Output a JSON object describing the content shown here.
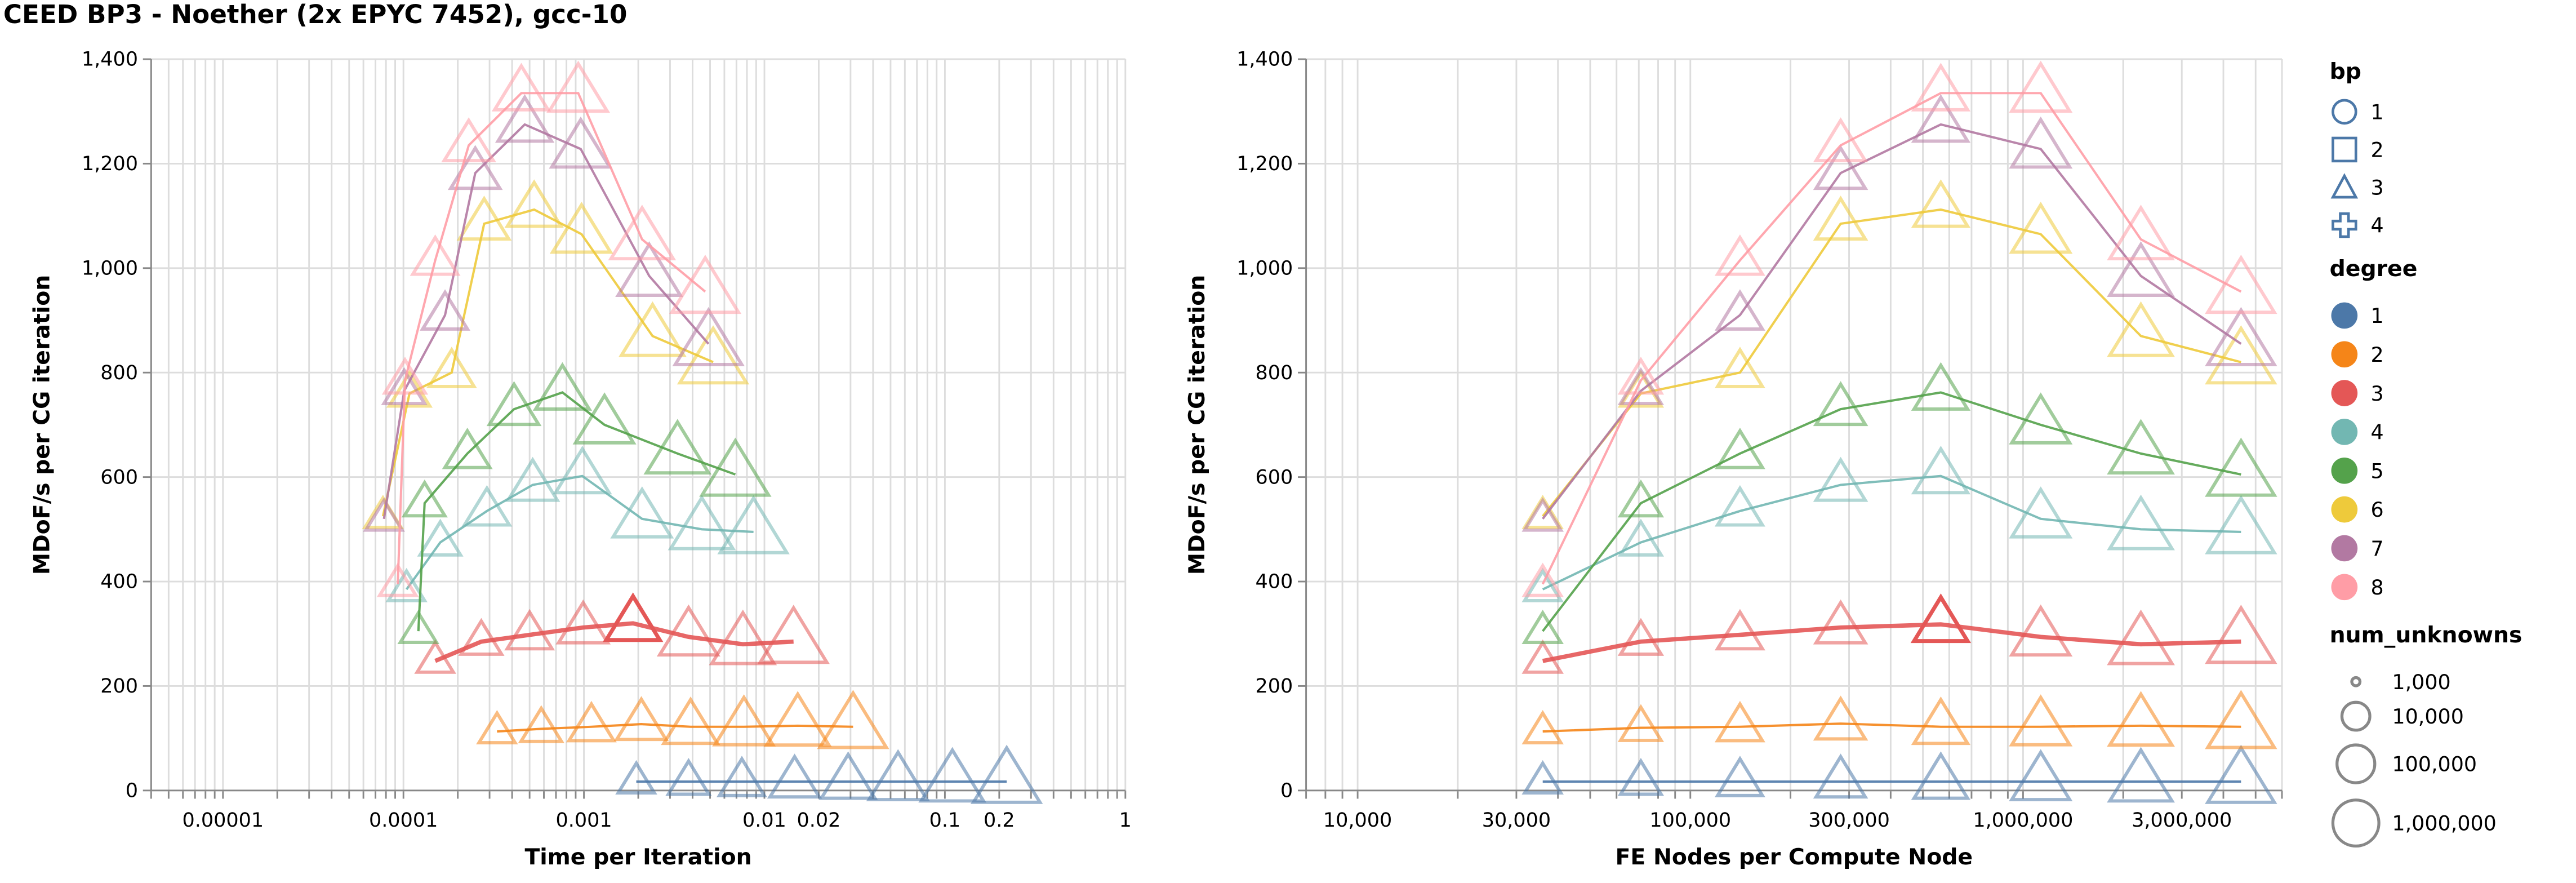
{
  "title": "CEED BP3 - Noether (2x EPYC 7452), gcc-10",
  "colors": {
    "deg1": "#4c78a8",
    "deg2": "#f58518",
    "deg3": "#e45756",
    "deg4": "#72b7b2",
    "deg5": "#54a24b",
    "deg6": "#eeca3b",
    "deg7": "#b279a2",
    "deg8": "#ff9da6",
    "grid": "#dddddd",
    "axis": "#888888"
  },
  "legend": {
    "bp": {
      "title": "bp",
      "items": [
        {
          "label": "1",
          "shape": "circle"
        },
        {
          "label": "2",
          "shape": "square"
        },
        {
          "label": "3",
          "shape": "triangle"
        },
        {
          "label": "4",
          "shape": "cross"
        }
      ]
    },
    "degree": {
      "title": "degree",
      "items": [
        {
          "label": "1",
          "color": "#4c78a8"
        },
        {
          "label": "2",
          "color": "#f58518"
        },
        {
          "label": "3",
          "color": "#e45756"
        },
        {
          "label": "4",
          "color": "#72b7b2"
        },
        {
          "label": "5",
          "color": "#54a24b"
        },
        {
          "label": "6",
          "color": "#eeca3b"
        },
        {
          "label": "7",
          "color": "#b279a2"
        },
        {
          "label": "8",
          "color": "#ff9da6"
        }
      ]
    },
    "num_unknowns": {
      "title": "num_unknowns",
      "items": [
        {
          "label": "1,000",
          "value": 1000
        },
        {
          "label": "10,000",
          "value": 10000
        },
        {
          "label": "100,000",
          "value": 100000
        },
        {
          "label": "1,000,000",
          "value": 1000000
        }
      ]
    }
  },
  "chart_data": [
    {
      "type": "scatter",
      "xlabel": "Time per Iteration",
      "ylabel": "MDoF/s per CG iteration",
      "xscale": "log",
      "xlim": [
        4e-06,
        1
      ],
      "ylim": [
        0,
        1400
      ],
      "grid": true,
      "x_ticks": [
        {
          "value": 1e-05,
          "label": "0.00001"
        },
        {
          "value": 0.0001,
          "label": "0.0001"
        },
        {
          "value": 0.001,
          "label": "0.001"
        },
        {
          "value": 0.01,
          "label": "0.01"
        },
        {
          "value": 0.02,
          "label": "0.02"
        },
        {
          "value": 0.1,
          "label": "0.1"
        },
        {
          "value": 0.2,
          "label": "0.2"
        },
        {
          "value": 1,
          "label": "1"
        }
      ],
      "y_ticks": [
        0,
        200,
        400,
        600,
        800,
        1000,
        1200,
        1400
      ],
      "y_tick_labels": [
        "0",
        "200",
        "400",
        "600",
        "800",
        "1,000",
        "1,200",
        "1,400"
      ],
      "series": [
        {
          "degree": 1,
          "bp": 3,
          "points": [
            [
              0.00195,
              17
            ],
            [
              0.0038,
              17
            ],
            [
              0.0075,
              17
            ],
            [
              0.0147,
              17
            ],
            [
              0.0291,
              17
            ],
            [
              0.055,
              17
            ],
            [
              0.11,
              17
            ],
            [
              0.22,
              17
            ]
          ]
        },
        {
          "degree": 2,
          "bp": 3,
          "points": [
            [
              0.00033,
              113
            ],
            [
              0.00058,
              118
            ],
            [
              0.0011,
              122
            ],
            [
              0.00208,
              127
            ],
            [
              0.0039,
              122
            ],
            [
              0.0077,
              122
            ],
            [
              0.0153,
              124
            ],
            [
              0.031,
              122
            ]
          ]
        },
        {
          "degree": 3,
          "bp": 3,
          "points": [
            [
              0.00015,
              248
            ],
            [
              0.00027,
              285
            ],
            [
              0.0005,
              298
            ],
            [
              0.00099,
              312
            ],
            [
              0.00187,
              320
            ],
            [
              0.0038,
              294
            ],
            [
              0.0076,
              280
            ],
            [
              0.0145,
              285
            ]
          ]
        },
        {
          "degree": 4,
          "bp": 3,
          "points": [
            [
              0.000104,
              385
            ],
            [
              0.00016,
              475
            ],
            [
              0.00029,
              535
            ],
            [
              0.00052,
              585
            ],
            [
              0.00098,
              602
            ],
            [
              0.0021,
              520
            ],
            [
              0.0045,
              500
            ],
            [
              0.0087,
              495
            ]
          ]
        },
        {
          "degree": 5,
          "bp": 3,
          "points": [
            [
              0.000121,
              305
            ],
            [
              0.000131,
              550
            ],
            [
              0.000226,
              645
            ],
            [
              0.00041,
              730
            ],
            [
              0.00076,
              762
            ],
            [
              0.0013,
              700
            ],
            [
              0.0033,
              645
            ],
            [
              0.0069,
              605
            ]
          ]
        },
        {
          "degree": 6,
          "bp": 3,
          "points": [
            [
              7.7e-05,
              525
            ],
            [
              0.000108,
              760
            ],
            [
              0.000185,
              800
            ],
            [
              0.00028,
              1085
            ],
            [
              0.00053,
              1112
            ],
            [
              0.00097,
              1065
            ],
            [
              0.0024,
              870
            ],
            [
              0.0052,
              820
            ]
          ]
        },
        {
          "degree": 7,
          "bp": 3,
          "points": [
            [
              7.8e-05,
              520
            ],
            [
              0.000101,
              765
            ],
            [
              0.00017,
              910
            ],
            [
              0.00025,
              1182
            ],
            [
              0.00047,
              1275
            ],
            [
              0.00096,
              1228
            ],
            [
              0.0023,
              985
            ],
            [
              0.0049,
              855
            ]
          ]
        },
        {
          "degree": 8,
          "bp": 3,
          "points": [
            [
              9.3e-05,
              395
            ],
            [
              0.000102,
              785
            ],
            [
              0.00015,
              1015
            ],
            [
              0.00023,
              1235
            ],
            [
              0.00045,
              1335
            ],
            [
              0.00093,
              1335
            ],
            [
              0.0021,
              1055
            ],
            [
              0.0047,
              955
            ]
          ]
        }
      ]
    },
    {
      "type": "scatter",
      "xlabel": "FE Nodes per Compute Node",
      "ylabel": "MDoF/s per CG iteration",
      "xscale": "log",
      "xlim": [
        7000,
        6000000
      ],
      "ylim": [
        0,
        1400
      ],
      "grid": true,
      "x_ticks": [
        {
          "value": 10000,
          "label": "10,000"
        },
        {
          "value": 30000,
          "label": "30,000"
        },
        {
          "value": 100000,
          "label": "100,000"
        },
        {
          "value": 300000,
          "label": "300,000"
        },
        {
          "value": 1000000,
          "label": "1,000,000"
        },
        {
          "value": 3000000,
          "label": "3,000,000"
        }
      ],
      "y_ticks": [
        0,
        200,
        400,
        600,
        800,
        1000,
        1200,
        1400
      ],
      "y_tick_labels": [
        "0",
        "200",
        "400",
        "600",
        "800",
        "1,000",
        "1,200",
        "1,400"
      ],
      "series": [
        {
          "degree": 1,
          "bp": 3,
          "points": [
            [
              36000,
              17
            ],
            [
              71000,
              17
            ],
            [
              141000,
              17
            ],
            [
              283000,
              17
            ],
            [
              566000,
              17
            ],
            [
              1130000,
              17
            ],
            [
              2260000,
              17
            ],
            [
              4520000,
              17
            ]
          ]
        },
        {
          "degree": 2,
          "bp": 3,
          "points": [
            [
              36000,
              113
            ],
            [
              71000,
              120
            ],
            [
              141000,
              122
            ],
            [
              283000,
              128
            ],
            [
              566000,
              122
            ],
            [
              1130000,
              122
            ],
            [
              2260000,
              124
            ],
            [
              4520000,
              122
            ]
          ]
        },
        {
          "degree": 3,
          "bp": 3,
          "points": [
            [
              36000,
              248
            ],
            [
              71000,
              285
            ],
            [
              141000,
              298
            ],
            [
              283000,
              312
            ],
            [
              566000,
              318
            ],
            [
              1130000,
              294
            ],
            [
              2260000,
              280
            ],
            [
              4520000,
              285
            ]
          ]
        },
        {
          "degree": 4,
          "bp": 3,
          "points": [
            [
              36000,
              385
            ],
            [
              71000,
              475
            ],
            [
              141000,
              535
            ],
            [
              283000,
              585
            ],
            [
              566000,
              602
            ],
            [
              1130000,
              520
            ],
            [
              2260000,
              500
            ],
            [
              4520000,
              495
            ]
          ]
        },
        {
          "degree": 5,
          "bp": 3,
          "points": [
            [
              36000,
              305
            ],
            [
              71000,
              550
            ],
            [
              141000,
              645
            ],
            [
              283000,
              730
            ],
            [
              566000,
              762
            ],
            [
              1130000,
              700
            ],
            [
              2260000,
              645
            ],
            [
              4520000,
              605
            ]
          ]
        },
        {
          "degree": 6,
          "bp": 3,
          "points": [
            [
              36000,
              525
            ],
            [
              71000,
              760
            ],
            [
              141000,
              800
            ],
            [
              283000,
              1085
            ],
            [
              566000,
              1112
            ],
            [
              1130000,
              1065
            ],
            [
              2260000,
              870
            ],
            [
              4520000,
              820
            ]
          ]
        },
        {
          "degree": 7,
          "bp": 3,
          "points": [
            [
              36000,
              520
            ],
            [
              71000,
              765
            ],
            [
              141000,
              910
            ],
            [
              283000,
              1182
            ],
            [
              566000,
              1275
            ],
            [
              1130000,
              1228
            ],
            [
              2260000,
              985
            ],
            [
              4520000,
              855
            ]
          ]
        },
        {
          "degree": 8,
          "bp": 3,
          "points": [
            [
              36000,
              395
            ],
            [
              71000,
              785
            ],
            [
              141000,
              1015
            ],
            [
              283000,
              1235
            ],
            [
              566000,
              1335
            ],
            [
              1130000,
              1335
            ],
            [
              2260000,
              1055
            ],
            [
              4520000,
              955
            ]
          ]
        }
      ]
    }
  ]
}
